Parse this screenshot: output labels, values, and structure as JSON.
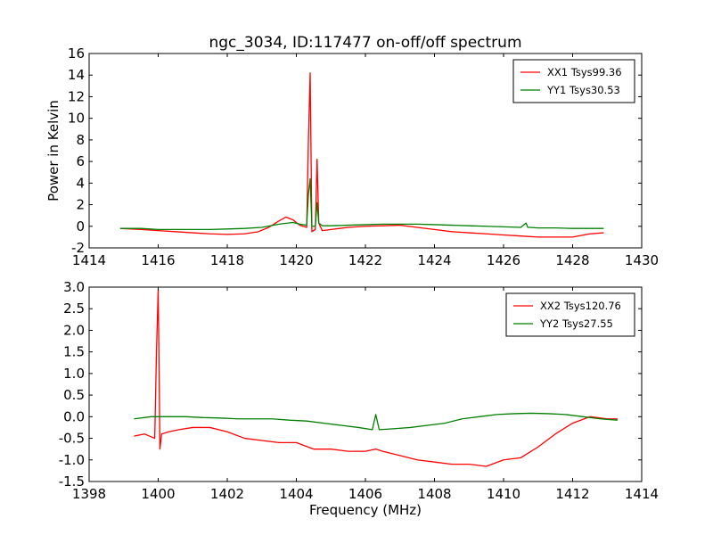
{
  "chart_data": [
    {
      "type": "line",
      "title": "ngc_3034, ID:117477 on-off/off spectrum",
      "xlabel": "",
      "ylabel": "Power in Kelvin",
      "xlim": [
        1414,
        1430
      ],
      "ylim": [
        -2,
        16
      ],
      "xticks": [
        1414,
        1416,
        1418,
        1420,
        1422,
        1424,
        1426,
        1428,
        1430
      ],
      "yticks": [
        -2,
        0,
        2,
        4,
        6,
        8,
        10,
        12,
        14,
        16
      ],
      "grid": false,
      "legend": "top-right",
      "series": [
        {
          "name": "XX1 Tsys99.36",
          "color": "#ff0000",
          "x": [
            1414.9,
            1415.5,
            1416.0,
            1416.5,
            1417.0,
            1417.5,
            1418.0,
            1418.5,
            1418.9,
            1419.2,
            1419.5,
            1419.7,
            1419.9,
            1420.1,
            1420.3,
            1420.35,
            1420.4,
            1420.45,
            1420.55,
            1420.6,
            1420.65,
            1420.75,
            1421.0,
            1421.5,
            1422.0,
            1422.5,
            1423.0,
            1423.5,
            1424.0,
            1424.5,
            1425.0,
            1425.5,
            1426.0,
            1426.5,
            1427.0,
            1427.5,
            1428.0,
            1428.5,
            1428.9
          ],
          "values": [
            -0.2,
            -0.3,
            -0.4,
            -0.5,
            -0.6,
            -0.7,
            -0.75,
            -0.7,
            -0.5,
            -0.1,
            0.5,
            0.85,
            0.6,
            0.1,
            -0.1,
            8.0,
            14.2,
            -0.5,
            -0.3,
            6.2,
            0.3,
            -0.4,
            -0.3,
            -0.1,
            0.0,
            0.05,
            0.1,
            -0.1,
            -0.3,
            -0.5,
            -0.6,
            -0.7,
            -0.8,
            -0.9,
            -1.0,
            -1.0,
            -1.0,
            -0.7,
            -0.6
          ]
        },
        {
          "name": "YY1 Tsys30.53",
          "color": "#008000",
          "x": [
            1414.9,
            1415.5,
            1416.0,
            1416.5,
            1417.0,
            1417.5,
            1418.0,
            1418.5,
            1419.0,
            1419.5,
            1419.9,
            1420.1,
            1420.3,
            1420.35,
            1420.4,
            1420.45,
            1420.55,
            1420.6,
            1420.65,
            1420.75,
            1421.0,
            1421.5,
            1422.0,
            1422.5,
            1423.0,
            1423.5,
            1424.0,
            1424.5,
            1425.0,
            1425.5,
            1426.0,
            1426.5,
            1426.65,
            1426.7,
            1426.75,
            1427.0,
            1427.5,
            1428.0,
            1428.5,
            1428.9
          ],
          "values": [
            -0.2,
            -0.2,
            -0.3,
            -0.3,
            -0.3,
            -0.3,
            -0.25,
            -0.2,
            -0.1,
            0.2,
            0.35,
            0.2,
            0.1,
            3.0,
            4.4,
            0.0,
            0.0,
            2.2,
            0.3,
            0.05,
            0.05,
            0.1,
            0.15,
            0.2,
            0.2,
            0.2,
            0.15,
            0.1,
            0.05,
            0.0,
            -0.05,
            -0.1,
            0.3,
            -0.1,
            -0.1,
            -0.15,
            -0.15,
            -0.2,
            -0.2,
            -0.2
          ]
        }
      ]
    },
    {
      "type": "line",
      "title": "",
      "xlabel": "Frequency (MHz)",
      "ylabel": "",
      "xlim": [
        1398,
        1414
      ],
      "ylim": [
        -1.5,
        3.0
      ],
      "xticks": [
        1398,
        1400,
        1402,
        1404,
        1406,
        1408,
        1410,
        1412,
        1414
      ],
      "yticks": [
        -1.5,
        -1.0,
        -0.5,
        0.0,
        0.5,
        1.0,
        1.5,
        2.0,
        2.5,
        3.0
      ],
      "grid": false,
      "legend": "top-right",
      "series": [
        {
          "name": "XX2 Tsys120.76",
          "color": "#ff0000",
          "x": [
            1399.3,
            1399.6,
            1399.9,
            1399.95,
            1400.0,
            1400.05,
            1400.1,
            1400.3,
            1400.6,
            1401.0,
            1401.5,
            1402.0,
            1402.5,
            1403.0,
            1403.5,
            1404.0,
            1404.5,
            1405.0,
            1405.5,
            1406.0,
            1406.3,
            1406.5,
            1407.0,
            1407.5,
            1408.0,
            1408.5,
            1409.0,
            1409.5,
            1410.0,
            1410.5,
            1411.0,
            1411.5,
            1412.0,
            1412.5,
            1413.0,
            1413.3
          ],
          "values": [
            -0.45,
            -0.4,
            -0.5,
            1.5,
            2.95,
            -0.75,
            -0.4,
            -0.35,
            -0.3,
            -0.25,
            -0.25,
            -0.35,
            -0.5,
            -0.55,
            -0.6,
            -0.6,
            -0.75,
            -0.75,
            -0.8,
            -0.8,
            -0.75,
            -0.8,
            -0.9,
            -1.0,
            -1.05,
            -1.1,
            -1.1,
            -1.15,
            -1.0,
            -0.95,
            -0.7,
            -0.4,
            -0.15,
            0.0,
            -0.05,
            -0.05
          ]
        },
        {
          "name": "YY2 Tsys27.55",
          "color": "#008000",
          "x": [
            1399.3,
            1399.8,
            1400.3,
            1400.8,
            1401.3,
            1401.8,
            1402.3,
            1402.8,
            1403.3,
            1403.8,
            1404.3,
            1404.8,
            1405.3,
            1405.8,
            1406.2,
            1406.3,
            1406.4,
            1406.8,
            1407.3,
            1407.8,
            1408.3,
            1408.8,
            1409.3,
            1409.8,
            1410.3,
            1410.8,
            1411.3,
            1411.8,
            1412.3,
            1412.8,
            1413.3
          ],
          "values": [
            -0.05,
            0.0,
            0.0,
            0.0,
            -0.02,
            -0.03,
            -0.05,
            -0.05,
            -0.05,
            -0.08,
            -0.1,
            -0.15,
            -0.2,
            -0.25,
            -0.3,
            0.05,
            -0.3,
            -0.28,
            -0.25,
            -0.2,
            -0.15,
            -0.05,
            0.0,
            0.05,
            0.07,
            0.08,
            0.07,
            0.05,
            0.0,
            -0.05,
            -0.08
          ]
        }
      ]
    }
  ]
}
